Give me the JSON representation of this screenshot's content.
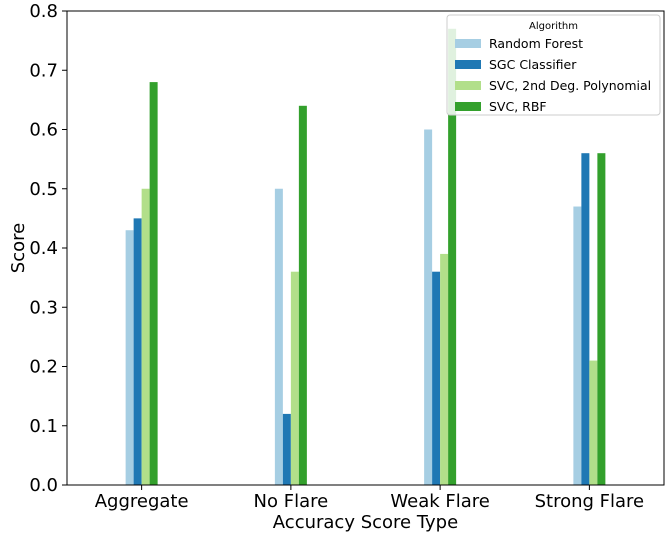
{
  "chart_data": {
    "type": "bar",
    "title": "",
    "xlabel": "Accuracy Score Type",
    "ylabel": "Score",
    "ylim": [
      0,
      0.8
    ],
    "yticks": [
      "0.0",
      "0.1",
      "0.2",
      "0.3",
      "0.4",
      "0.5",
      "0.6",
      "0.7",
      "0.8"
    ],
    "categories": [
      "Aggregate",
      "No Flare",
      "Weak Flare",
      "Strong Flare"
    ],
    "series": [
      {
        "name": "Random Forest",
        "color": "#a6cee3",
        "values": [
          0.43,
          0.5,
          0.6,
          0.47
        ]
      },
      {
        "name": "SGC Classifier",
        "color": "#1f78b4",
        "values": [
          0.45,
          0.12,
          0.36,
          0.56
        ]
      },
      {
        "name": "SVC, 2nd Deg. Polynomial",
        "color": "#b2df8a",
        "values": [
          0.5,
          0.36,
          0.39,
          0.21
        ]
      },
      {
        "name": "SVC, RBF",
        "color": "#33a02c",
        "values": [
          0.68,
          0.64,
          0.77,
          0.56
        ]
      }
    ],
    "legend": {
      "title": "Algorithm",
      "placement": "top-right"
    },
    "grid": false
  }
}
